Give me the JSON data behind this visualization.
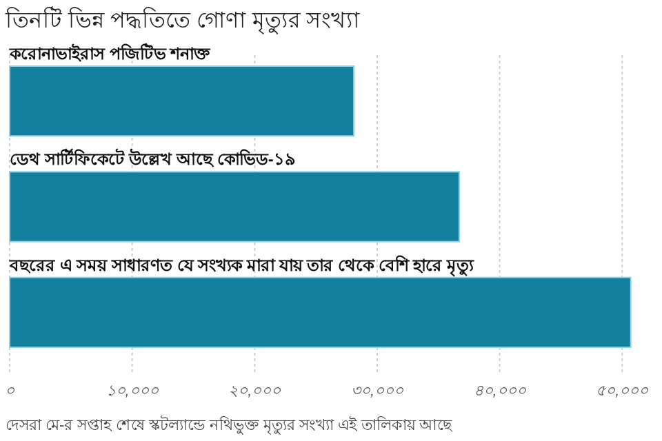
{
  "chart_data": {
    "type": "bar",
    "orientation": "horizontal",
    "title": "তিনটি ভিন্ন পদ্ধতিতে গোণা মৃত্যুর সংখ্যা",
    "categories": [
      "করোনাভাইরাস পজিটিভ শনাক্ত",
      "ডেথ সার্টিফিকেটে উল্লেখ আছে কোভিড-১৯",
      "বছরের এ সময় সাধারণত যে সংখ্যক মারা যায় তার থেকে বেশি হারে মৃত্যু"
    ],
    "values": [
      28100,
      36700,
      50700
    ],
    "color": "#137f9c",
    "xlim": [
      0,
      51000
    ],
    "xticks": [
      {
        "value": 0,
        "label": "০"
      },
      {
        "value": 10000,
        "label": "১০,০০০"
      },
      {
        "value": 20000,
        "label": "২০,০০০"
      },
      {
        "value": 30000,
        "label": "৩০,০০০"
      },
      {
        "value": 40000,
        "label": "৪০,০০০"
      },
      {
        "value": 50000,
        "label": "৫০,০০০"
      }
    ],
    "grid": "x",
    "annotations": [
      "দেসরা মে-র সপ্তাহ শেষে স্কটল্যান্ডে নথিভুক্ত মৃত্যুর সংখ্যা এই তালিকায় আছে"
    ]
  }
}
